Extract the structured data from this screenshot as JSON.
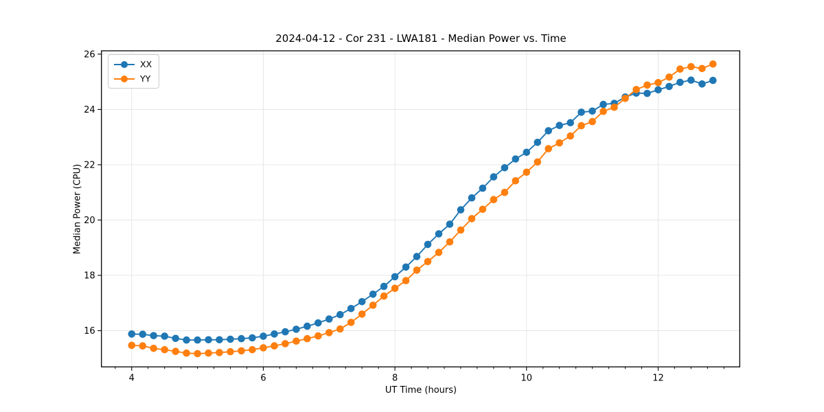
{
  "chart": {
    "title": "2024-04-12 - Cor 231 - LWA181 - Median Power vs. Time",
    "xlabel": "UT Time (hours)",
    "ylabel": "Median Power (CPU)"
  },
  "chart_data": {
    "type": "line",
    "title": "2024-04-12 - Cor 231 - LWA181 - Median Power vs. Time",
    "xlabel": "UT Time (hours)",
    "ylabel": "Median Power (CPU)",
    "grid": true,
    "legend_position": "upper left",
    "xlim": [
      3.54,
      13.24
    ],
    "ylim": [
      14.69,
      26.12
    ],
    "xticks_major": [
      4,
      6,
      8,
      10,
      12
    ],
    "xticks_minor_step": 0.25,
    "yticks_major": [
      16,
      18,
      20,
      22,
      24,
      26
    ],
    "x": [
      4.0,
      4.167,
      4.333,
      4.5,
      4.667,
      4.833,
      5.0,
      5.167,
      5.333,
      5.5,
      5.667,
      5.833,
      6.0,
      6.167,
      6.333,
      6.5,
      6.667,
      6.833,
      7.0,
      7.167,
      7.333,
      7.5,
      7.667,
      7.833,
      8.0,
      8.167,
      8.333,
      8.5,
      8.667,
      8.833,
      9.0,
      9.167,
      9.333,
      9.5,
      9.667,
      9.833,
      10.0,
      10.167,
      10.333,
      10.5,
      10.667,
      10.833,
      11.0,
      11.167,
      11.333,
      11.5,
      11.667,
      11.833,
      12.0,
      12.167,
      12.333,
      12.5,
      12.667,
      12.833
    ],
    "series": [
      {
        "name": "XX",
        "color": "#1f77b4",
        "values": [
          15.88,
          15.87,
          15.82,
          15.8,
          15.72,
          15.66,
          15.66,
          15.67,
          15.67,
          15.69,
          15.71,
          15.74,
          15.8,
          15.88,
          15.96,
          16.05,
          16.16,
          16.28,
          16.42,
          16.58,
          16.8,
          17.05,
          17.32,
          17.6,
          17.95,
          18.3,
          18.68,
          19.12,
          19.5,
          19.85,
          20.37,
          20.8,
          21.15,
          21.56,
          21.89,
          22.21,
          22.45,
          22.81,
          23.23,
          23.42,
          23.52,
          23.9,
          23.94,
          24.18,
          24.22,
          24.45,
          24.59,
          24.58,
          24.71,
          24.83,
          24.98,
          25.06,
          24.92,
          25.05
        ]
      },
      {
        "name": "YY",
        "color": "#ff7f0e",
        "values": [
          15.47,
          15.45,
          15.36,
          15.31,
          15.25,
          15.19,
          15.17,
          15.19,
          15.21,
          15.24,
          15.27,
          15.31,
          15.38,
          15.45,
          15.53,
          15.62,
          15.71,
          15.81,
          15.93,
          16.06,
          16.3,
          16.6,
          16.92,
          17.25,
          17.53,
          17.81,
          18.19,
          18.5,
          18.83,
          19.21,
          19.64,
          20.05,
          20.39,
          20.74,
          21.0,
          21.42,
          21.73,
          22.1,
          22.58,
          22.79,
          23.04,
          23.41,
          23.56,
          23.93,
          24.08,
          24.4,
          24.72,
          24.88,
          24.97,
          25.17,
          25.46,
          25.55,
          25.48,
          25.64
        ]
      }
    ]
  },
  "colors": {
    "grid": "#e6e6e6",
    "spine": "#000000",
    "tick_text": "#000000"
  }
}
